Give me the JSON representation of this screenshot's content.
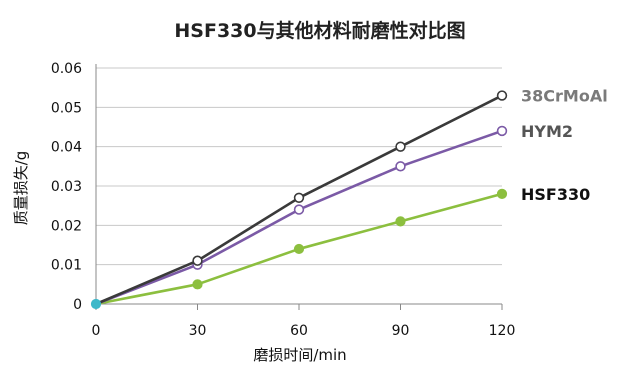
{
  "chart_data": {
    "type": "line",
    "title": "HSF330与其他材料耐磨性对比图",
    "xlabel": "磨损时间/min",
    "ylabel": "质量损失/g",
    "x": [
      0,
      30,
      60,
      90,
      120
    ],
    "xlim": [
      0,
      120
    ],
    "ylim": [
      0,
      0.06
    ],
    "xticks": [
      "0",
      "30",
      "60",
      "90",
      "120"
    ],
    "yticks": [
      "0",
      "0.01",
      "0.02",
      "0.03",
      "0.04",
      "0.05",
      "0.06"
    ],
    "grid": true,
    "legend_placement": "right-end-of-lines",
    "series": [
      {
        "name": "38CrMoAl",
        "values": [
          0,
          0.011,
          0.027,
          0.04,
          0.053
        ],
        "color": "#3a3a3a",
        "label_color": "#7a7a7a",
        "marker": "open-circle"
      },
      {
        "name": "HYM2",
        "values": [
          0,
          0.01,
          0.024,
          0.035,
          0.044
        ],
        "color": "#7b5aa6",
        "label_color": "#555555",
        "marker": "open-circle"
      },
      {
        "name": "HSF330",
        "values": [
          0,
          0.005,
          0.014,
          0.021,
          0.028
        ],
        "color": "#8cbf3f",
        "label_color": "#111111",
        "marker": "filled-circle"
      }
    ],
    "origin_marker_color": "#3fb8c9"
  }
}
